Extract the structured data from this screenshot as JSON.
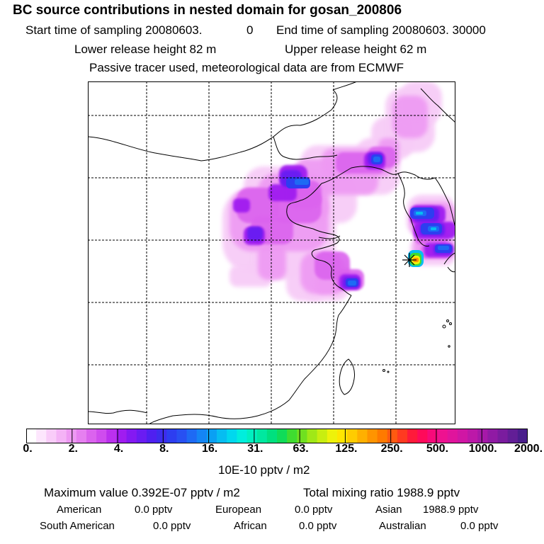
{
  "header": {
    "title": "BC  source contributions in nested domain for gosan_200806",
    "start_time": "Start time of sampling 20080603.",
    "start_time_suffix": "0",
    "end_time": "End time of sampling 20080603. 30000",
    "lower_release": "Lower release height   82 m",
    "upper_release": "Upper release height   62 m",
    "tracer_note": "Passive tracer used, meteorological data are from ECMWF"
  },
  "colorbar": {
    "colors": [
      "#ffffff",
      "#fde6fd",
      "#f9ccf9",
      "#f4b3f6",
      "#ee99f3",
      "#e680f0",
      "#db63ee",
      "#cf4cee",
      "#bb30ee",
      "#a01cf0",
      "#8419f2",
      "#6a1cf2",
      "#4f20f0",
      "#3d2ced",
      "#2d3ef0",
      "#2850f2",
      "#1e6af4",
      "#1485f5",
      "#0aa0f3",
      "#06bdf1",
      "#00d8ee",
      "#00eedd",
      "#00f0c0",
      "#00e8a0",
      "#00e07f",
      "#10dc58",
      "#3fdc30",
      "#70e020",
      "#a0e817",
      "#c8ee10",
      "#eef20a",
      "#ffe600",
      "#ffcc00",
      "#ffb000",
      "#ff9400",
      "#ff7a00",
      "#ff5a10",
      "#ff3a20",
      "#ff1a3a",
      "#ff0a5a",
      "#f70a7a",
      "#ee1290",
      "#e0149c",
      "#d016a4",
      "#bc18a8",
      "#a618a8",
      "#901aa4",
      "#7a1c9e",
      "#621e96",
      "#4a1e8c"
    ],
    "tick_labels": [
      "0.",
      "2.",
      "4.",
      "8.",
      "16.",
      "31.",
      "63.",
      "125.",
      "250.",
      "500.",
      "1000.",
      "2000."
    ],
    "unit": "10E-10 pptv / m2"
  },
  "stats": {
    "maximum": "Maximum value  0.392E-07 pptv / m2",
    "total": "Total mixing ratio     1988.9 pptv",
    "american_label": "American",
    "american_value": "0.0 pptv",
    "european_label": "European",
    "european_value": "0.0 pptv",
    "asian_label": "Asian",
    "asian_value": "1988.9 pptv",
    "south_american_label": "South American",
    "south_american_value": "0.0 pptv",
    "african_label": "African",
    "african_value": "0.0 pptv",
    "australian_label": "Australian",
    "australian_value": "0.0 pptv"
  },
  "map": {
    "receptor_marker": "receptor-star-icon",
    "grid": "dashed",
    "palette": {
      "light_pink": "#f7ccf7",
      "pink": "#ee99f3",
      "magenta": "#db63ee",
      "purple": "#a01cf0",
      "violet": "#6a1cf2",
      "blue": "#2d3ef0",
      "mid_blue": "#1e6af4",
      "cyan": "#06bdf1",
      "green": "#3fdc30",
      "yellow": "#eef20a",
      "orange": "#ff9400"
    }
  }
}
